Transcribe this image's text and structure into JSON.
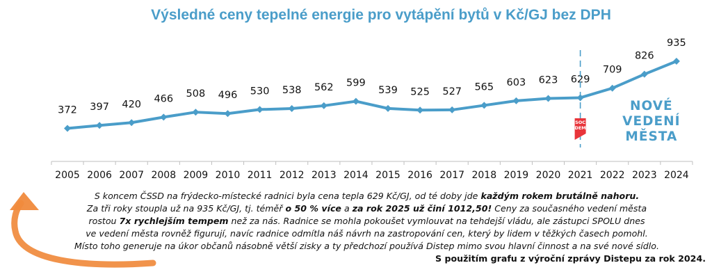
{
  "chart_data": {
    "type": "line",
    "title": "Výsledné ceny tepelné energie pro vytápění bytů v Kč/GJ bez DPH",
    "categories": [
      "2005",
      "2006",
      "2007",
      "2008",
      "2009",
      "2010",
      "2011",
      "2012",
      "2013",
      "2014",
      "2015",
      "2016",
      "2017",
      "2018",
      "2019",
      "2020",
      "2021",
      "2022",
      "2023",
      "2024"
    ],
    "values": [
      372,
      397,
      420,
      466,
      508,
      496,
      530,
      538,
      562,
      599,
      539,
      525,
      527,
      565,
      603,
      623,
      629,
      709,
      826,
      935
    ],
    "line_color": "#4a9dc9",
    "annotation": {
      "marker_after": "2021",
      "badge": {
        "line1": "SOC",
        "line2": "DEM",
        "color": "#e8343a"
      },
      "lines": [
        "NOVÉ",
        "VEDENÍ",
        "MĚSTA"
      ]
    }
  },
  "caption": {
    "l1a": "S koncem ČSSD na frýdecko-místecké radnici byla cena tepla 629 Kč/GJ, od té doby jde ",
    "l1b": "každým rokem brutálně nahoru.",
    "l2a": "Za tři roky stoupla už na 935 Kč/GJ, tj. téměř ",
    "l2b": "o 50 % více",
    "l2c": " a ",
    "l2d": "za rok 2025 už činí 1012,50!",
    "l2e": " Ceny za současného vedení města",
    "l3a": "rostou ",
    "l3b": "7x rychlejším tempem",
    "l3c": " než za nás. Radnice se mohla pokoušet vymlouvat na tehdejší vládu, ale zástupci SPOLU dnes",
    "l4": "ve vedení města rovněž figurují, navíc radnice odmítla náš návrh na zastropování cen, který by lidem v těžkých časech pomohl.",
    "l5": "Místo toho generuje na úkor občanů násobně větší zisky a ty předchozí používá Distep mimo svou hlavní činnost a na své nové sídlo.",
    "l6": "S použitím grafu z výroční zprávy Distepu za rok 2024."
  },
  "arrow_color": "#f08a3c"
}
